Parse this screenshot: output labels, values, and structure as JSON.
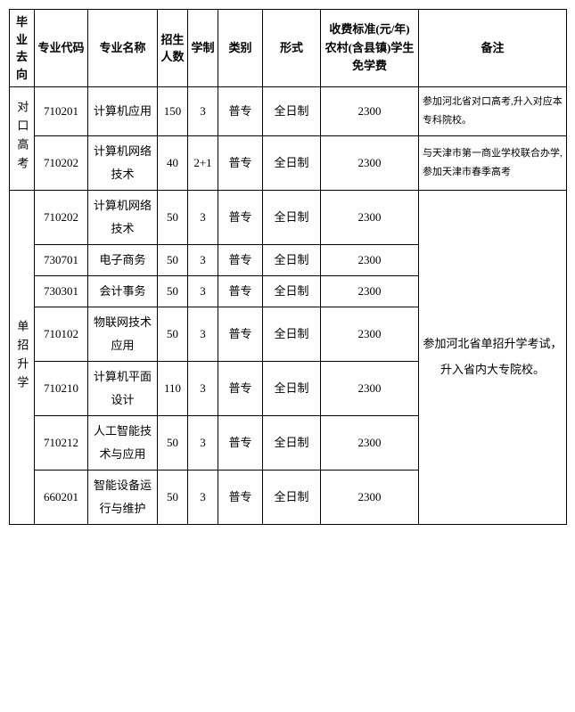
{
  "headers": {
    "direction": "毕业去向",
    "code": "专业代码",
    "major": "专业名称",
    "count": "招生人数",
    "duration": "学制",
    "category": "类别",
    "form": "形式",
    "fee": "收费标准(元/年)农村(含县镇)学生免学费",
    "remark": "备注"
  },
  "groups": [
    {
      "direction": "对口高考",
      "rows": [
        {
          "code": "710201",
          "major": "计算机应用",
          "count": "150",
          "duration": "3",
          "category": "普专",
          "form": "全日制",
          "fee": "2300",
          "remark": "参加河北省对口高考,升入对应本专科院校。"
        },
        {
          "code": "710202",
          "major": "计算机网络技术",
          "count": "40",
          "duration": "2+1",
          "category": "普专",
          "form": "全日制",
          "fee": "2300",
          "remark": "与天津市第一商业学校联合办学,参加天津市春季高考"
        }
      ]
    },
    {
      "direction": "单招升学",
      "remark": "参加河北省单招升学考试，升入省内大专院校。",
      "rows": [
        {
          "code": "710202",
          "major": "计算机网络技术",
          "count": "50",
          "duration": "3",
          "category": "普专",
          "form": "全日制",
          "fee": "2300"
        },
        {
          "code": "730701",
          "major": "电子商务",
          "count": "50",
          "duration": "3",
          "category": "普专",
          "form": "全日制",
          "fee": "2300"
        },
        {
          "code": "730301",
          "major": "会计事务",
          "count": "50",
          "duration": "3",
          "category": "普专",
          "form": "全日制",
          "fee": "2300"
        },
        {
          "code": "710102",
          "major": "物联网技术应用",
          "count": "50",
          "duration": "3",
          "category": "普专",
          "form": "全日制",
          "fee": "2300"
        },
        {
          "code": "710210",
          "major": "计算机平面设计",
          "count": "110",
          "duration": "3",
          "category": "普专",
          "form": "全日制",
          "fee": "2300"
        },
        {
          "code": "710212",
          "major": "人工智能技术与应用",
          "count": "50",
          "duration": "3",
          "category": "普专",
          "form": "全日制",
          "fee": "2300"
        },
        {
          "code": "660201",
          "major": "智能设备运行与维护",
          "count": "50",
          "duration": "3",
          "category": "普专",
          "form": "全日制",
          "fee": "2300"
        }
      ]
    }
  ]
}
